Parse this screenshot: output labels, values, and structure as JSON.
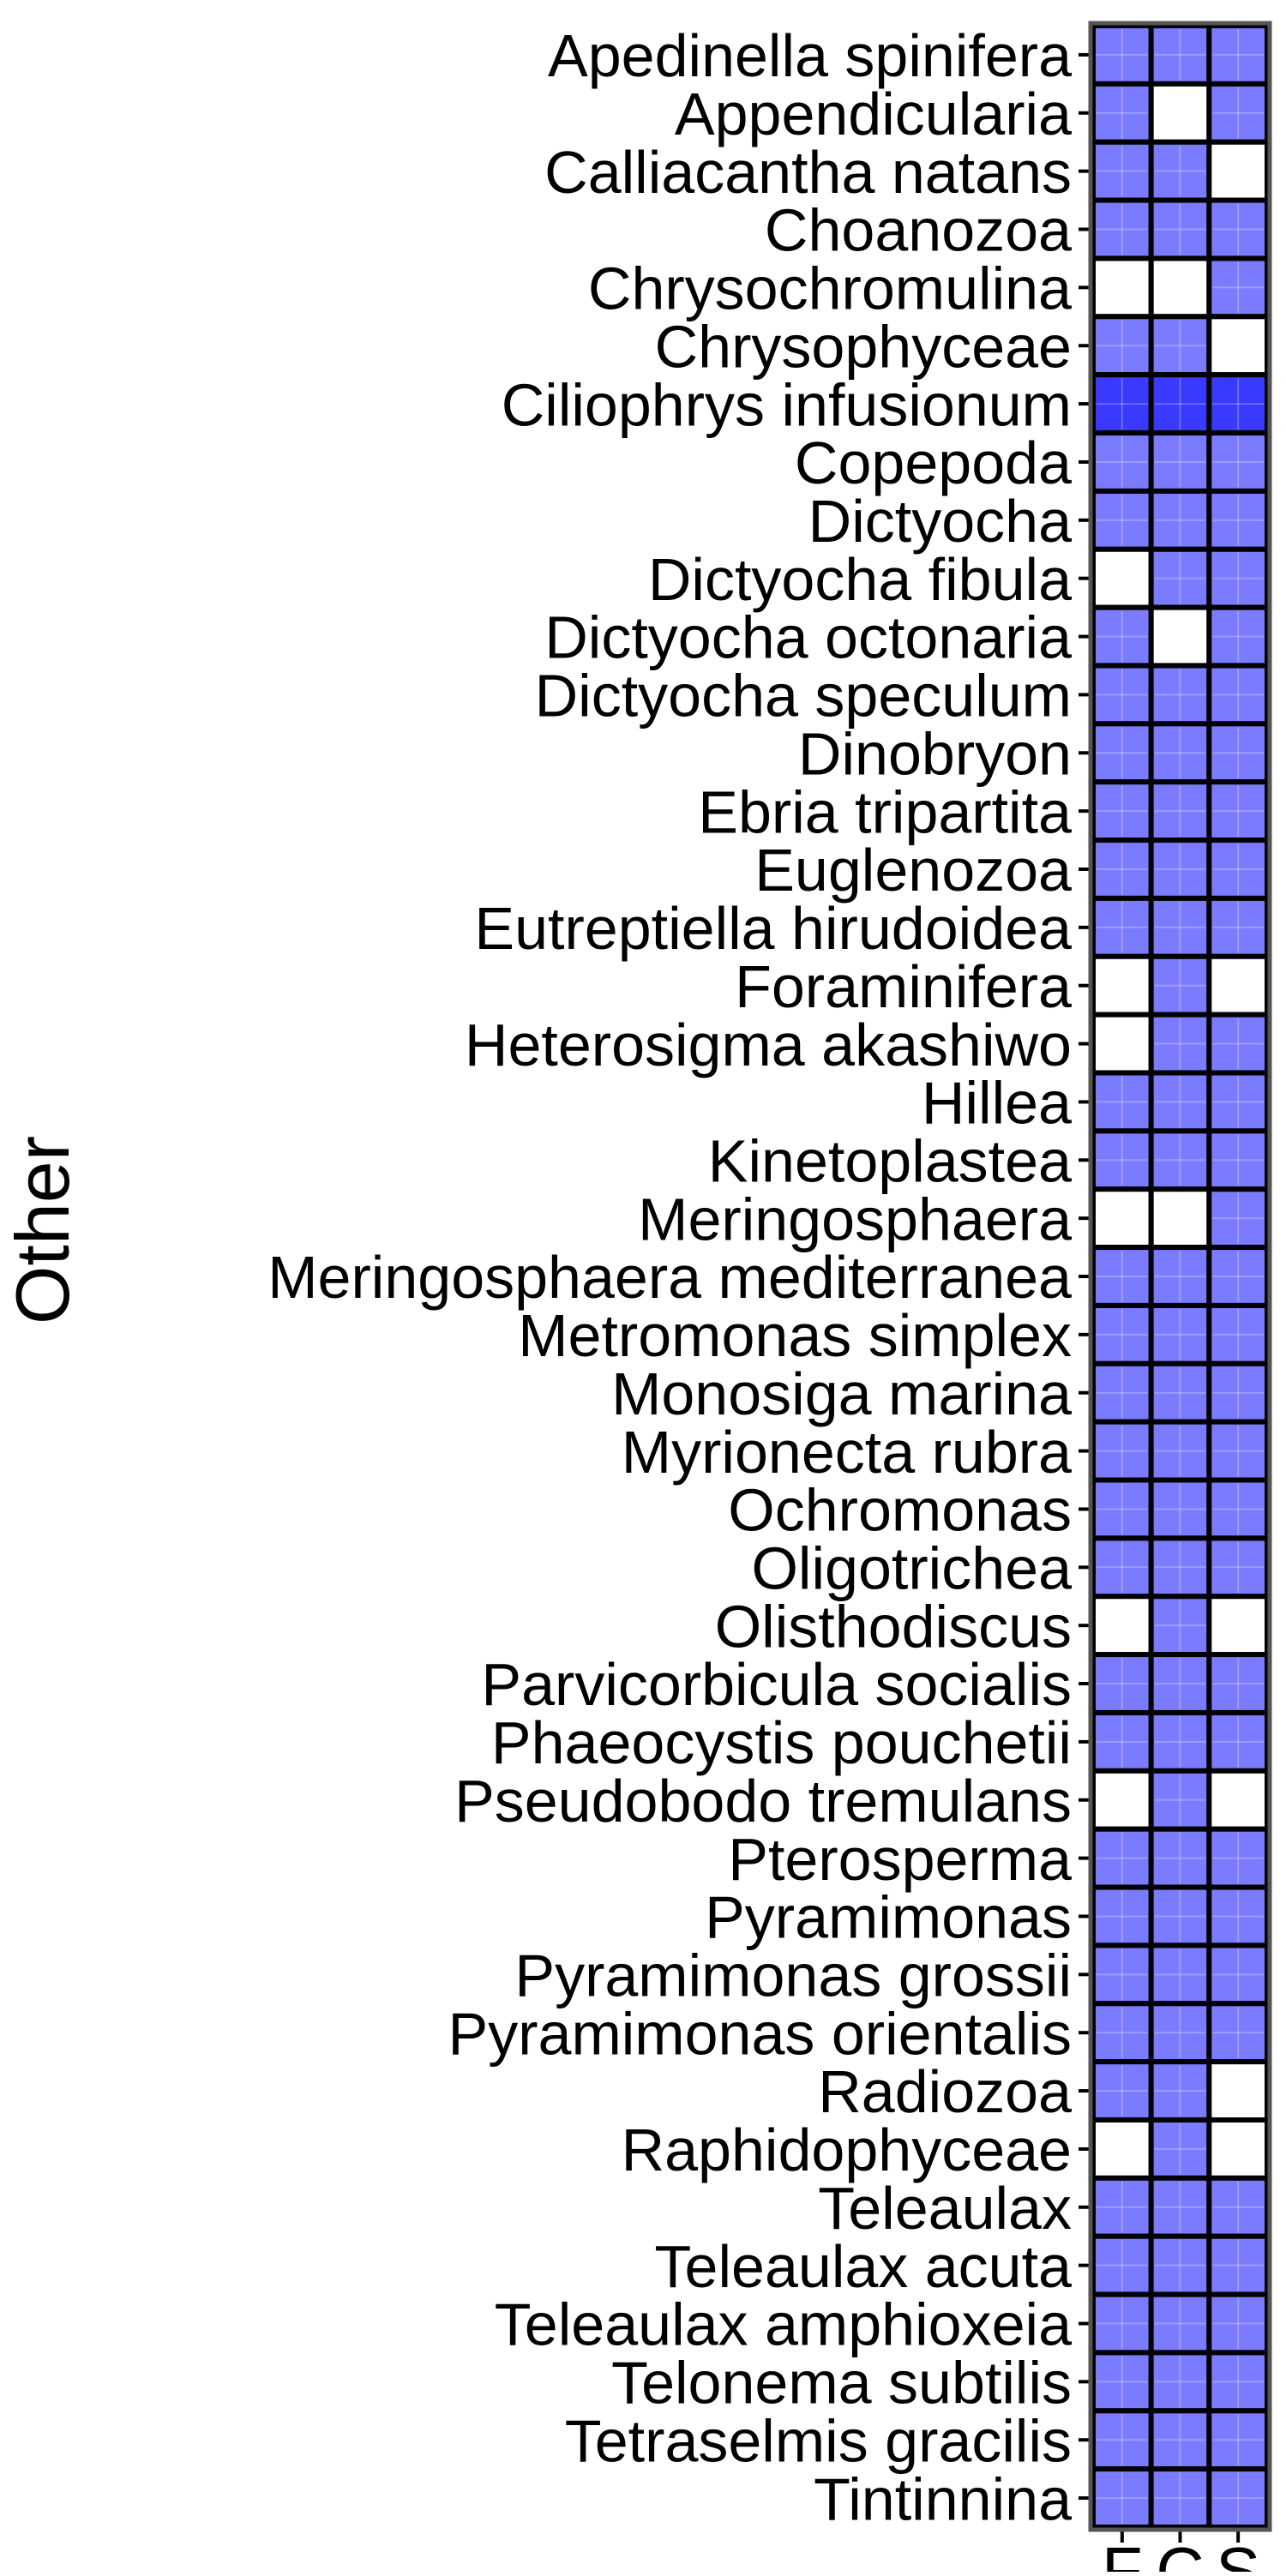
{
  "chart_data": {
    "type": "heatmap",
    "ylabel": "Other",
    "columns": [
      "F",
      "C",
      "S"
    ],
    "rows": [
      "Apedinella spinifera",
      "Appendicularia",
      "Calliacantha natans",
      "Choanozoa",
      "Chrysochromulina",
      "Chrysophyceae",
      "Ciliophrys infusionum",
      "Copepoda",
      "Dictyocha",
      "Dictyocha fibula",
      "Dictyocha octonaria",
      "Dictyocha speculum",
      "Dinobryon",
      "Ebria tripartita",
      "Euglenozoa",
      "Eutreptiella hirudoidea",
      "Foraminifera",
      "Heterosigma akashiwo",
      "Hillea",
      "Kinetoplastea",
      "Meringosphaera",
      "Meringosphaera mediterranea",
      "Metromonas simplex",
      "Monosiga marina",
      "Myrionecta rubra",
      "Ochromonas",
      "Oligotrichea",
      "Olisthodiscus",
      "Parvicorbicula socialis",
      "Phaeocystis pouchetii",
      "Pseudobodo tremulans",
      "Pterosperma",
      "Pyramimonas",
      "Pyramimonas grossii",
      "Pyramimonas orientalis",
      "Radiozoa",
      "Raphidophyceae",
      "Teleaulax",
      "Teleaulax acuta",
      "Teleaulax amphioxeia",
      "Telonema subtilis",
      "Tetraselmis gracilis",
      "Tintinnina"
    ],
    "values": [
      [
        1,
        1,
        1
      ],
      [
        1,
        0,
        1
      ],
      [
        1,
        1,
        0
      ],
      [
        1,
        1,
        1
      ],
      [
        0,
        0,
        1
      ],
      [
        1,
        1,
        0
      ],
      [
        2,
        2,
        2
      ],
      [
        1,
        1,
        1
      ],
      [
        1,
        1,
        1
      ],
      [
        0,
        1,
        1
      ],
      [
        1,
        0,
        1
      ],
      [
        1,
        1,
        1
      ],
      [
        1,
        1,
        1
      ],
      [
        1,
        1,
        1
      ],
      [
        1,
        1,
        1
      ],
      [
        1,
        1,
        1
      ],
      [
        0,
        1,
        0
      ],
      [
        0,
        1,
        1
      ],
      [
        1,
        1,
        1
      ],
      [
        1,
        1,
        1
      ],
      [
        0,
        0,
        1
      ],
      [
        1,
        1,
        1
      ],
      [
        1,
        1,
        1
      ],
      [
        1,
        1,
        1
      ],
      [
        1,
        1,
        1
      ],
      [
        1,
        1,
        1
      ],
      [
        1,
        1,
        1
      ],
      [
        0,
        1,
        0
      ],
      [
        1,
        1,
        1
      ],
      [
        1,
        1,
        1
      ],
      [
        0,
        1,
        0
      ],
      [
        1,
        1,
        1
      ],
      [
        1,
        1,
        1
      ],
      [
        1,
        1,
        1
      ],
      [
        1,
        1,
        1
      ],
      [
        1,
        1,
        0
      ],
      [
        0,
        1,
        0
      ],
      [
        1,
        1,
        1
      ],
      [
        1,
        1,
        1
      ],
      [
        1,
        1,
        1
      ],
      [
        1,
        1,
        1
      ],
      [
        1,
        1,
        1
      ],
      [
        1,
        1,
        1
      ]
    ],
    "colors": {
      "0": "#ffffff",
      "1": "#7b7bff",
      "2": "#3a3aff"
    },
    "cell_border": "#000000",
    "panel_border": "#555555",
    "grid": true,
    "legend": "none"
  }
}
